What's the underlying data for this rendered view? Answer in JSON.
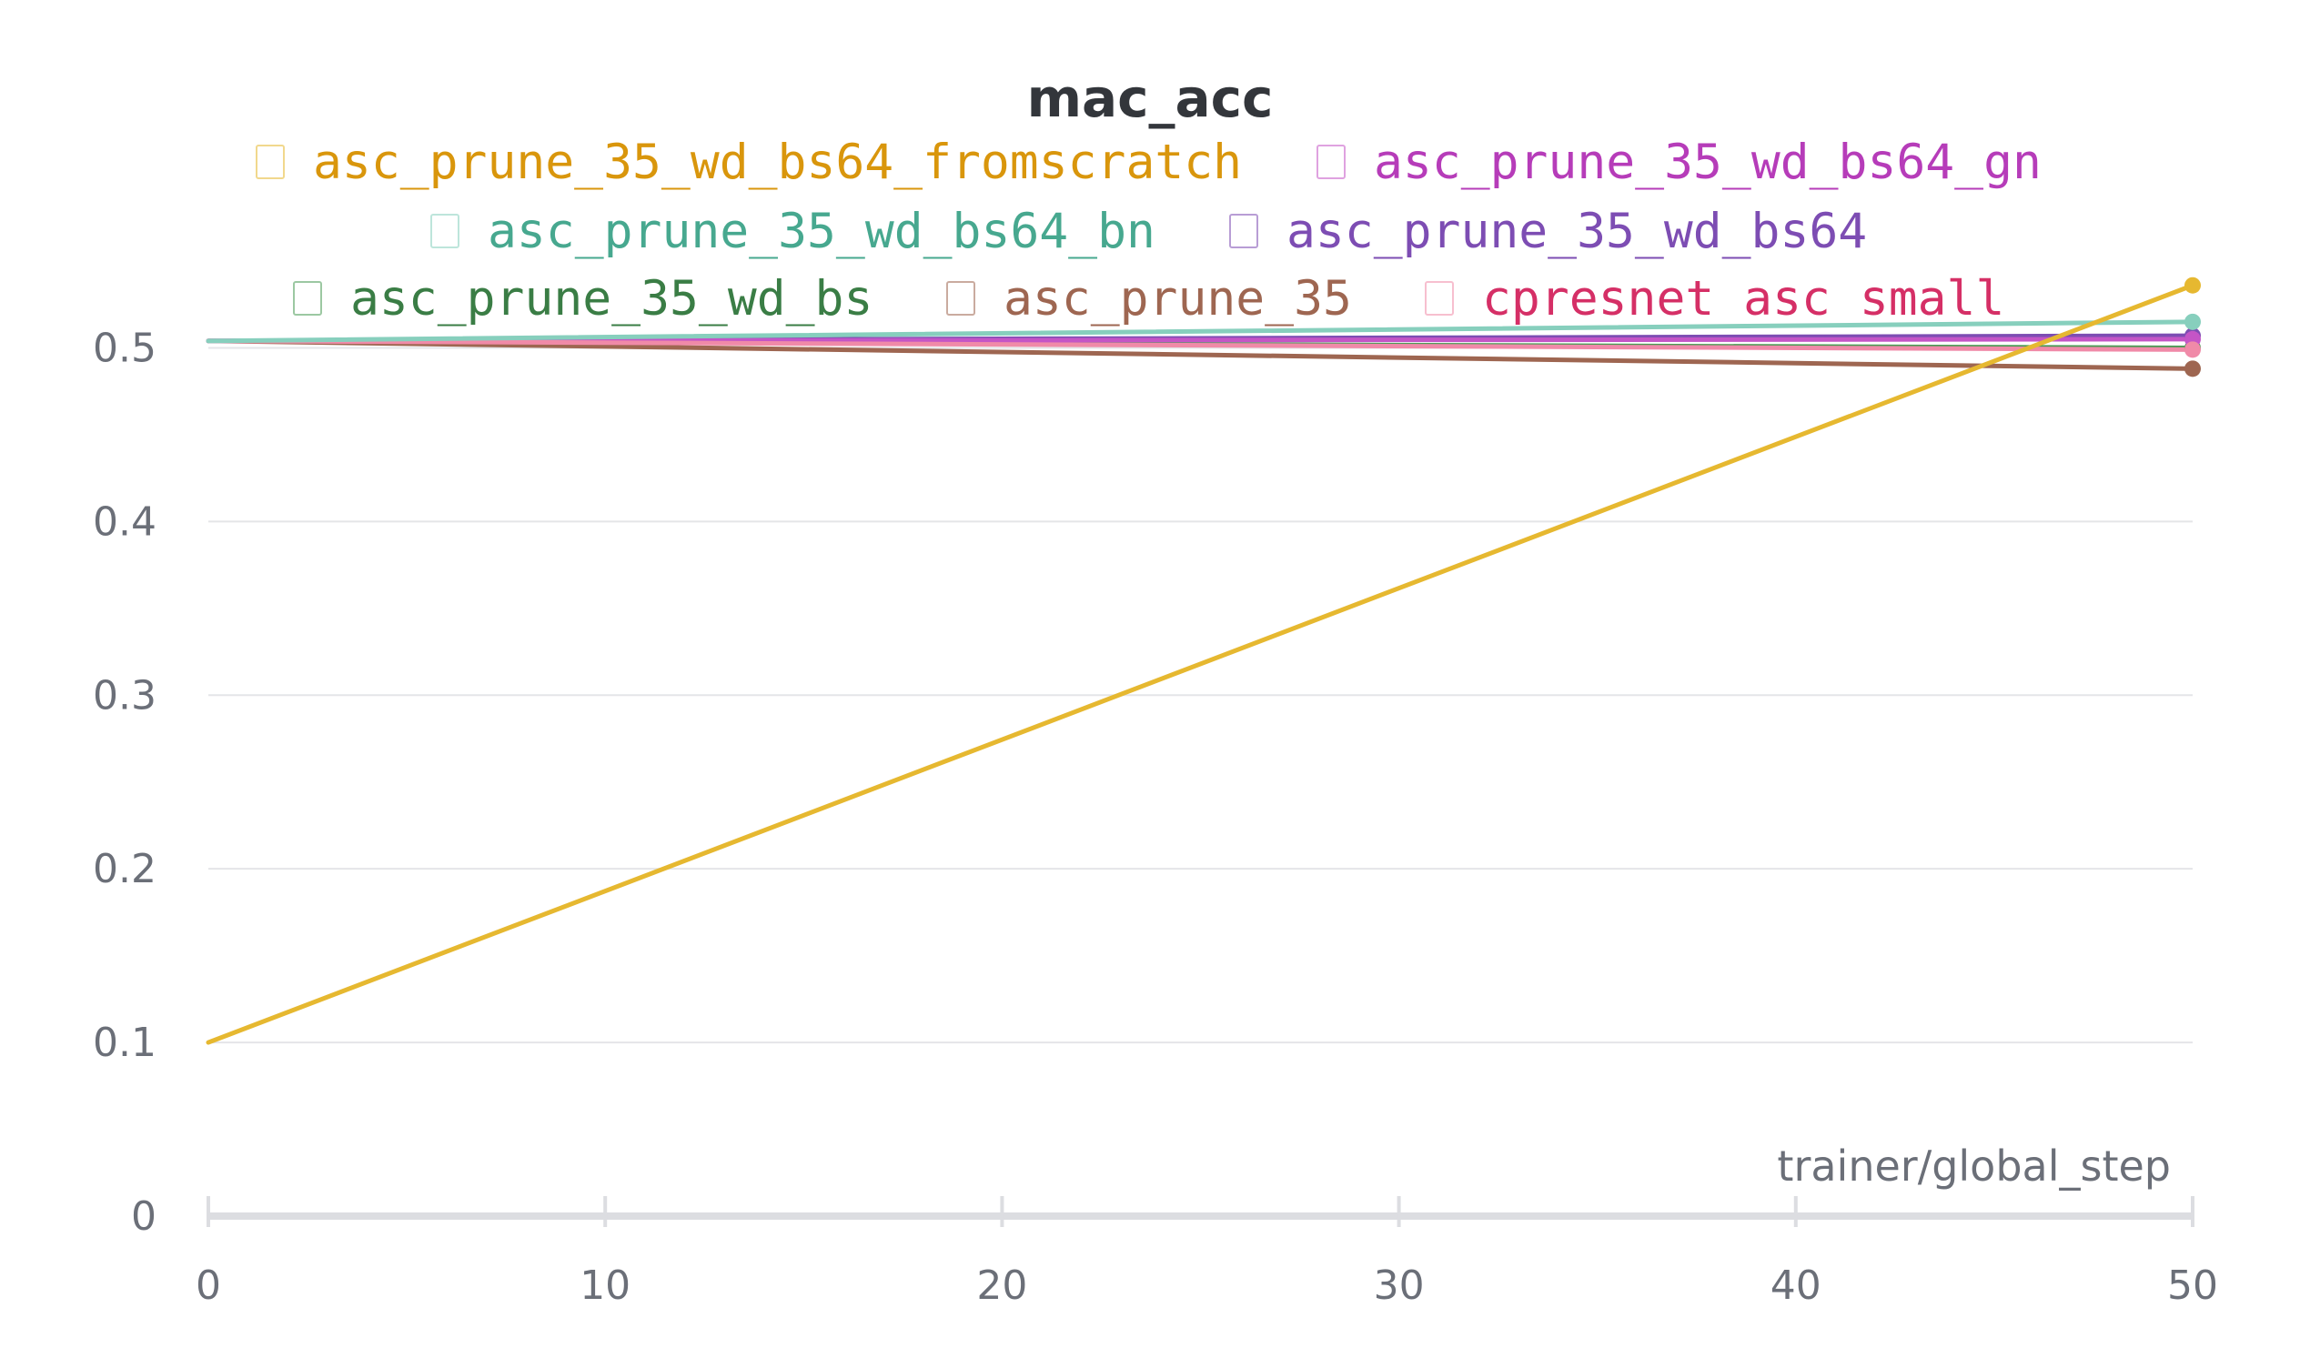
{
  "chart_data": {
    "type": "line",
    "title": "mac_acc",
    "xlabel": "trainer/global_step",
    "ylabel": "",
    "xlim": [
      0,
      50
    ],
    "ylim": [
      0,
      0.55
    ],
    "x_ticks": [
      0,
      10,
      20,
      30,
      40,
      50
    ],
    "y_ticks": [
      0,
      0.1,
      0.2,
      0.3,
      0.4,
      0.5
    ],
    "grid": "horizontal",
    "legend_position": "top",
    "x": [
      0,
      50
    ],
    "series": [
      {
        "name": "asc_prune_35_wd_bs64_fromscratch",
        "values": [
          0.1,
          0.536
        ],
        "color": "#e6b830",
        "label_color": "#d9960c"
      },
      {
        "name": "asc_prune_35_wd_bs64_gn",
        "values": [
          0.504,
          0.505
        ],
        "color": "#c455c6",
        "label_color": "#b63cb9"
      },
      {
        "name": "asc_prune_35_wd_bs64_bn",
        "values": [
          0.504,
          0.515
        ],
        "color": "#87cfbd",
        "label_color": "#47a88f"
      },
      {
        "name": "asc_prune_35_wd_bs64",
        "values": [
          0.504,
          0.507
        ],
        "color": "#7d4db3",
        "label_color": "#7d4db3"
      },
      {
        "name": "asc_prune_35_wd_bs",
        "values": [
          0.504,
          0.5
        ],
        "color": "#4a9a55",
        "label_color": "#3a7d45"
      },
      {
        "name": "asc_prune_35",
        "values": [
          0.504,
          0.488
        ],
        "color": "#9e6651",
        "label_color": "#9e6651"
      },
      {
        "name": "cpresnet_asc_small",
        "values": [
          0.504,
          0.499
        ],
        "color": "#f08aa8",
        "label_color": "#d52f66"
      }
    ]
  }
}
